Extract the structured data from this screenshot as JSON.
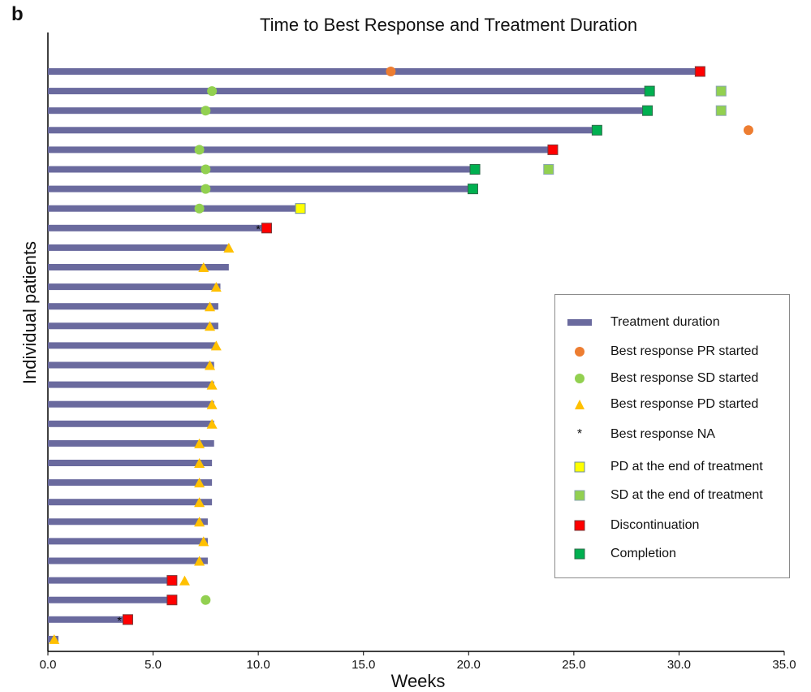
{
  "panel_label": "b",
  "chart_data": {
    "type": "bar",
    "orientation": "horizontal",
    "title": "Time to Best Response and Treatment Duration",
    "xlabel": "Weeks",
    "ylabel": "Individual patients",
    "xlim": [
      0,
      35
    ],
    "x_ticks": [
      "0.0",
      "5.0",
      "10.0",
      "15.0",
      "20.0",
      "25.0",
      "30.0",
      "35.0"
    ],
    "grid": false,
    "legend_position": "right-middle",
    "colors": {
      "bar": "#6a6a9e",
      "pr": "#ed7d31",
      "sd": "#92d050",
      "pd": "#ffc000",
      "pd_end": "#ffff00",
      "sd_end": "#92d050",
      "discontinuation": "#ff0000",
      "completion": "#00b050"
    },
    "legend": [
      {
        "key": "treatment",
        "label": "Treatment duration"
      },
      {
        "key": "pr",
        "label": "Best response PR started"
      },
      {
        "key": "sd",
        "label": "Best response SD started"
      },
      {
        "key": "pd",
        "label": "Best response PD started"
      },
      {
        "key": "na",
        "label": "Best response NA"
      },
      {
        "key": "pd_end",
        "label": "PD at the end of treatment"
      },
      {
        "key": "sd_end",
        "label": "SD at the end of treatment"
      },
      {
        "key": "discontinuation",
        "label": "Discontinuation"
      },
      {
        "key": "completion",
        "label": "Completion"
      }
    ],
    "patients": [
      {
        "duration": 31.0,
        "best": "pr",
        "best_time": 16.3,
        "end": "discontinuation"
      },
      {
        "duration": 28.6,
        "best": "sd",
        "best_time": 7.8,
        "end": "completion",
        "sd_end_time": 32.0
      },
      {
        "duration": 28.5,
        "best": "sd",
        "best_time": 7.5,
        "end": "completion",
        "sd_end_time": 32.0
      },
      {
        "duration": 26.1,
        "best": "pr",
        "best_time": 33.3,
        "end": "completion"
      },
      {
        "duration": 24.0,
        "best": "sd",
        "best_time": 7.2,
        "end": "discontinuation"
      },
      {
        "duration": 20.3,
        "best": "sd",
        "best_time": 7.5,
        "end": "completion",
        "sd_end_time": 23.8
      },
      {
        "duration": 20.2,
        "best": "sd",
        "best_time": 7.5,
        "end": "completion"
      },
      {
        "duration": 12.0,
        "best": "sd",
        "best_time": 7.2,
        "end": "pd_end"
      },
      {
        "duration": 10.4,
        "best": "na",
        "best_time": 10.0,
        "end": "discontinuation"
      },
      {
        "duration": 8.6,
        "best": "pd",
        "best_time": 8.6
      },
      {
        "duration": 8.6,
        "best": "pd",
        "best_time": 7.4
      },
      {
        "duration": 8.2,
        "best": "pd",
        "best_time": 8.0
      },
      {
        "duration": 8.1,
        "best": "pd",
        "best_time": 7.7
      },
      {
        "duration": 8.1,
        "best": "pd",
        "best_time": 7.7
      },
      {
        "duration": 8.0,
        "best": "pd",
        "best_time": 8.0
      },
      {
        "duration": 7.9,
        "best": "pd",
        "best_time": 7.7
      },
      {
        "duration": 7.9,
        "best": "pd",
        "best_time": 7.8
      },
      {
        "duration": 7.9,
        "best": "pd",
        "best_time": 7.8
      },
      {
        "duration": 7.9,
        "best": "pd",
        "best_time": 7.8
      },
      {
        "duration": 7.9,
        "best": "pd",
        "best_time": 7.2
      },
      {
        "duration": 7.8,
        "best": "pd",
        "best_time": 7.2
      },
      {
        "duration": 7.8,
        "best": "pd",
        "best_time": 7.2
      },
      {
        "duration": 7.8,
        "best": "pd",
        "best_time": 7.2
      },
      {
        "duration": 7.6,
        "best": "pd",
        "best_time": 7.2
      },
      {
        "duration": 7.6,
        "best": "pd",
        "best_time": 7.4
      },
      {
        "duration": 7.6,
        "best": "pd",
        "best_time": 7.2
      },
      {
        "duration": 5.9,
        "best": "pd",
        "best_time": 6.5,
        "end": "discontinuation"
      },
      {
        "duration": 5.9,
        "best": "sd",
        "best_time": 7.5,
        "end": "discontinuation"
      },
      {
        "duration": 3.8,
        "best": "na",
        "best_time": 3.4,
        "end": "discontinuation"
      },
      {
        "duration": 0.5,
        "best": "pd",
        "best_time": 0.3
      }
    ]
  }
}
